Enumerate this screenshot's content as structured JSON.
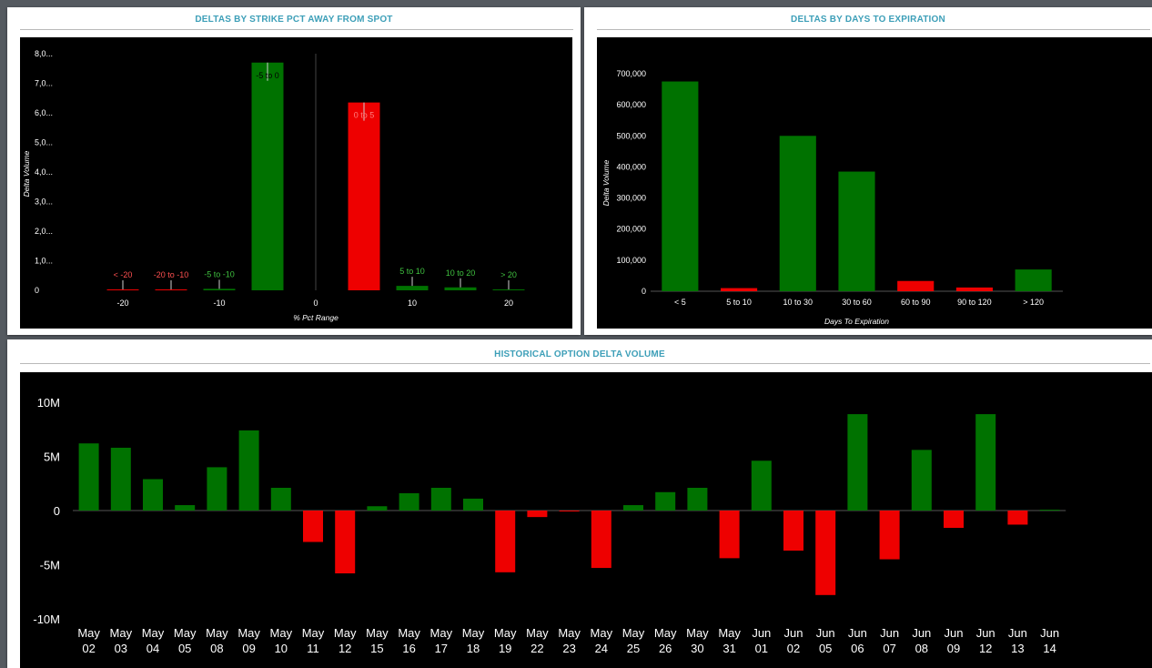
{
  "panels": {
    "strike": {
      "title": "DELTAS BY STRIKE PCT AWAY FROM SPOT"
    },
    "expiry": {
      "title": "DELTAS BY DAYS TO EXPIRATION"
    },
    "history": {
      "title": "HISTORICAL OPTION DELTA VOLUME"
    }
  },
  "colors": {
    "positive": "#007200",
    "negative": "#ee0000",
    "positive_label": "#3fc13f",
    "negative_label": "#ff5050",
    "title": "#3d9fb8"
  },
  "chart_data": [
    {
      "id": "strike",
      "type": "bar",
      "title": "DELTAS BY STRIKE PCT AWAY FROM SPOT",
      "xlabel": "% Pct Range",
      "ylabel": "Delta Volume",
      "xlim": [
        -25,
        25
      ],
      "ylim": [
        0,
        8000
      ],
      "yticks": [
        {
          "value": 0,
          "label": "0"
        },
        {
          "value": 1000,
          "label": "1,0..."
        },
        {
          "value": 2000,
          "label": "2,0..."
        },
        {
          "value": 3000,
          "label": "3,0..."
        },
        {
          "value": 4000,
          "label": "4,0..."
        },
        {
          "value": 5000,
          "label": "5,0..."
        },
        {
          "value": 6000,
          "label": "6,0..."
        },
        {
          "value": 7000,
          "label": "7,0..."
        },
        {
          "value": 8000,
          "label": "8,0..."
        }
      ],
      "xticks": [
        {
          "value": -20,
          "label": "-20"
        },
        {
          "value": -10,
          "label": "-10"
        },
        {
          "value": 0,
          "label": "0"
        },
        {
          "value": 10,
          "label": "10"
        },
        {
          "value": 20,
          "label": "20"
        }
      ],
      "bars": [
        {
          "label": "< -20",
          "x": -20,
          "value": 15,
          "sign": "neg"
        },
        {
          "label": "-20 to -10",
          "x": -15,
          "value": 20,
          "sign": "neg"
        },
        {
          "label": "-5 to -10",
          "x": -10,
          "value": 50,
          "sign": "pos"
        },
        {
          "label": "-5 to 0",
          "x": -5,
          "value": 7700,
          "sign": "pos"
        },
        {
          "label": "0 to 5",
          "x": 5,
          "value": 6350,
          "sign": "neg"
        },
        {
          "label": "5 to 10",
          "x": 10,
          "value": 150,
          "sign": "pos"
        },
        {
          "label": "10 to 20",
          "x": 15,
          "value": 100,
          "sign": "pos"
        },
        {
          "label": "> 20",
          "x": 20,
          "value": 30,
          "sign": "pos"
        }
      ]
    },
    {
      "id": "expiry",
      "type": "bar",
      "title": "DELTAS BY DAYS TO EXPIRATION",
      "xlabel": "Days To Expiration",
      "ylabel": "Delta Volume",
      "ylim": [
        0,
        700000
      ],
      "yticks": [
        {
          "value": 0,
          "label": "0"
        },
        {
          "value": 100000,
          "label": "100,000"
        },
        {
          "value": 200000,
          "label": "200,000"
        },
        {
          "value": 300000,
          "label": "300,000"
        },
        {
          "value": 400000,
          "label": "400,000"
        },
        {
          "value": 500000,
          "label": "500,000"
        },
        {
          "value": 600000,
          "label": "600,000"
        },
        {
          "value": 700000,
          "label": "700,000"
        }
      ],
      "categories": [
        "< 5",
        "5 to 10",
        "10 to 30",
        "30 to 60",
        "60 to 90",
        "90 to 120",
        "> 120"
      ],
      "values": [
        675000,
        10000,
        500000,
        385000,
        33000,
        12000,
        70000
      ],
      "signs": [
        "pos",
        "neg",
        "pos",
        "pos",
        "neg",
        "neg",
        "pos"
      ]
    },
    {
      "id": "history",
      "type": "bar",
      "title": "HISTORICAL OPTION DELTA VOLUME",
      "ylim": [
        -10000000,
        10000000
      ],
      "yticks": [
        {
          "value": 10000000,
          "label": "10M"
        },
        {
          "value": 5000000,
          "label": "5M"
        },
        {
          "value": 0,
          "label": "0"
        },
        {
          "value": -5000000,
          "label": "-5M"
        },
        {
          "value": -10000000,
          "label": "-10M"
        }
      ],
      "categories": [
        [
          "May",
          "02"
        ],
        [
          "May",
          "03"
        ],
        [
          "May",
          "04"
        ],
        [
          "May",
          "05"
        ],
        [
          "May",
          "08"
        ],
        [
          "May",
          "09"
        ],
        [
          "May",
          "10"
        ],
        [
          "May",
          "11"
        ],
        [
          "May",
          "12"
        ],
        [
          "May",
          "15"
        ],
        [
          "May",
          "16"
        ],
        [
          "May",
          "17"
        ],
        [
          "May",
          "18"
        ],
        [
          "May",
          "19"
        ],
        [
          "May",
          "22"
        ],
        [
          "May",
          "23"
        ],
        [
          "May",
          "24"
        ],
        [
          "May",
          "25"
        ],
        [
          "May",
          "26"
        ],
        [
          "May",
          "30"
        ],
        [
          "May",
          "31"
        ],
        [
          "Jun",
          "01"
        ],
        [
          "Jun",
          "02"
        ],
        [
          "Jun",
          "05"
        ],
        [
          "Jun",
          "06"
        ],
        [
          "Jun",
          "07"
        ],
        [
          "Jun",
          "08"
        ],
        [
          "Jun",
          "09"
        ],
        [
          "Jun",
          "12"
        ],
        [
          "Jun",
          "13"
        ],
        [
          "Jun",
          "14"
        ]
      ],
      "values": [
        6200000,
        5800000,
        2900000,
        500000,
        4000000,
        7400000,
        2100000,
        -2900000,
        -5800000,
        400000,
        1600000,
        2100000,
        1100000,
        -5700000,
        -600000,
        -50000,
        -5300000,
        500000,
        1700000,
        2100000,
        -4400000,
        4600000,
        -3700000,
        -7800000,
        8900000,
        -4500000,
        5600000,
        -1600000,
        8900000,
        -1300000,
        80000
      ]
    }
  ]
}
